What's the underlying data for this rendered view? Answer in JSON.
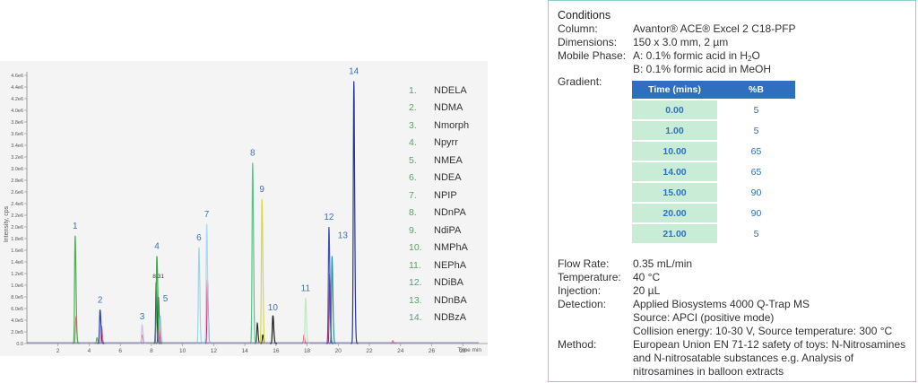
{
  "chart_data": {
    "type": "line",
    "title": "",
    "xlabel": "Time min",
    "ylabel": "Intensity, cps",
    "xlim": [
      0,
      29.6
    ],
    "ylim": [
      0,
      4.6
    ],
    "x_ticks": [
      "2",
      "4",
      "6",
      "8",
      "10",
      "12",
      "14",
      "16",
      "18",
      "20",
      "22",
      "24",
      "26",
      "28"
    ],
    "y_ticks": [
      "0.0",
      "2.0e5",
      "4.0e5",
      "6.0e5",
      "8.0e5",
      "1.0e6",
      "1.2e6",
      "1.4e6",
      "1.6e6",
      "1.8e6",
      "2.0e6",
      "2.2e6",
      "2.4e6",
      "2.6e6",
      "2.8e6",
      "3.0e6",
      "3.2e6",
      "3.4e6",
      "3.6e6",
      "3.8e6",
      "4.0e6",
      "4.2e6",
      "4.4e6",
      "4.6e6"
    ],
    "annotation": "8.31",
    "peaks": [
      {
        "label": "1",
        "time": 3.1,
        "height": 1.85,
        "color": "#4caf50"
      },
      {
        "label": "2",
        "time": 4.7,
        "height": 0.58,
        "color": "#2b3fa8"
      },
      {
        "label": "3",
        "time": 7.4,
        "height": 0.32,
        "color": "#c7c4ee"
      },
      {
        "label": "4",
        "time": 8.35,
        "height": 1.5,
        "color": "#3aa84b"
      },
      {
        "label": "5",
        "time": 8.55,
        "height": 0.48,
        "color": "#88c3d6"
      },
      {
        "label": "6",
        "time": 11.05,
        "height": 1.65,
        "color": "#9ad8e8"
      },
      {
        "label": "7",
        "time": 11.55,
        "height": 2.05,
        "color": "#aad9f0"
      },
      {
        "label": "8",
        "time": 14.5,
        "height": 3.1,
        "color": "#57c48a"
      },
      {
        "label": "9",
        "time": 15.1,
        "height": 2.48,
        "color": "#d8d84a"
      },
      {
        "label": "10",
        "time": 15.8,
        "height": 0.48,
        "color": "#1a1a1a"
      },
      {
        "label": "11",
        "time": 17.9,
        "height": 0.78,
        "color": "#bde8c4"
      },
      {
        "label": "12",
        "time": 19.4,
        "height": 2.0,
        "color": "#3f51b5"
      },
      {
        "label": "13",
        "time": 19.6,
        "height": 1.5,
        "color": "#2196a0"
      },
      {
        "label": "14",
        "time": 21.0,
        "height": 4.5,
        "color": "#283593"
      }
    ],
    "minor_peaks": [
      {
        "time": 3.15,
        "height": 0.45,
        "color": "#e06a8a"
      },
      {
        "time": 4.8,
        "height": 0.3,
        "color": "#e06a8a"
      },
      {
        "time": 4.5,
        "height": 0.1,
        "color": "#4caf50"
      },
      {
        "time": 7.4,
        "height": 0.15,
        "color": "#e06a8a"
      },
      {
        "time": 8.3,
        "height": 1.05,
        "color": "#1a237e"
      },
      {
        "time": 8.45,
        "height": 0.8,
        "color": "#c2185b"
      },
      {
        "time": 11.6,
        "height": 1.1,
        "color": "#d81b60"
      },
      {
        "time": 14.8,
        "height": 0.35,
        "color": "#1a1a1a"
      },
      {
        "time": 15.15,
        "height": 0.15,
        "color": "#1a1a1a"
      },
      {
        "time": 17.8,
        "height": 0.15,
        "color": "#e06a8a"
      },
      {
        "time": 19.45,
        "height": 1.2,
        "color": "#c2185b"
      },
      {
        "time": 23.5,
        "height": 0.05,
        "color": "#e06a8a"
      }
    ]
  },
  "legend": [
    {
      "num": "1.",
      "name": "NDELA"
    },
    {
      "num": "2.",
      "name": "NDMA"
    },
    {
      "num": "3.",
      "name": "Nmorph"
    },
    {
      "num": "4.",
      "name": "Npyrr"
    },
    {
      "num": "5.",
      "name": "NMEA"
    },
    {
      "num": "6.",
      "name": "NDEA"
    },
    {
      "num": "7.",
      "name": "NPIP"
    },
    {
      "num": "8.",
      "name": "NDnPA"
    },
    {
      "num": "9.",
      "name": "NdiPA"
    },
    {
      "num": "10.",
      "name": "NMPhA"
    },
    {
      "num": "11.",
      "name": "NEPhA"
    },
    {
      "num": "12.",
      "name": "NDiBA"
    },
    {
      "num": "13.",
      "name": "NDnBA"
    },
    {
      "num": "14.",
      "name": "NDBzA"
    }
  ],
  "conditions": {
    "title": "Conditions",
    "column_label": "Column:",
    "column_value": "Avantor® ACE® Excel 2 C18-PFP",
    "dimensions_label": "Dimensions:",
    "dimensions_value": "150 x 3.0 mm, 2 µm",
    "mobile_label": "Mobile Phase:",
    "mobile_a_pre": "A: 0.1% formic acid in H",
    "mobile_a_sub": "2",
    "mobile_a_post": "O",
    "mobile_b": "B: 0.1% formic acid in MeOH",
    "gradient_label": "Gradient:",
    "gradient_headers": [
      "Time (mins)",
      "%B"
    ],
    "gradient_rows": [
      {
        "time": "0.00",
        "b": "5"
      },
      {
        "time": "1.00",
        "b": "5"
      },
      {
        "time": "10.00",
        "b": "65"
      },
      {
        "time": "14.00",
        "b": "65"
      },
      {
        "time": "15.00",
        "b": "90"
      },
      {
        "time": "20.00",
        "b": "90"
      },
      {
        "time": "21.00",
        "b": "5"
      }
    ],
    "flow_label": "Flow Rate:",
    "flow_value": "0.35 mL/min",
    "temp_label": "Temperature:",
    "temp_value": "40 °C",
    "injection_label": "Injection:",
    "injection_value": "20 µL",
    "detection_label": "Detection:",
    "detection_value": "Applied Biosystems 4000 Q-Trap MS",
    "source_value": "Source: APCI (positive mode)",
    "collision_value": "Collision energy: 10-30 V, Source temperature: 300 °C",
    "method_label": "Method:",
    "method_value": "European Union EN 71-12 safety of toys: N-Nitrosamines and N-nitrosatable substances e.g. Analysis of nitrosamines in balloon extracts"
  }
}
